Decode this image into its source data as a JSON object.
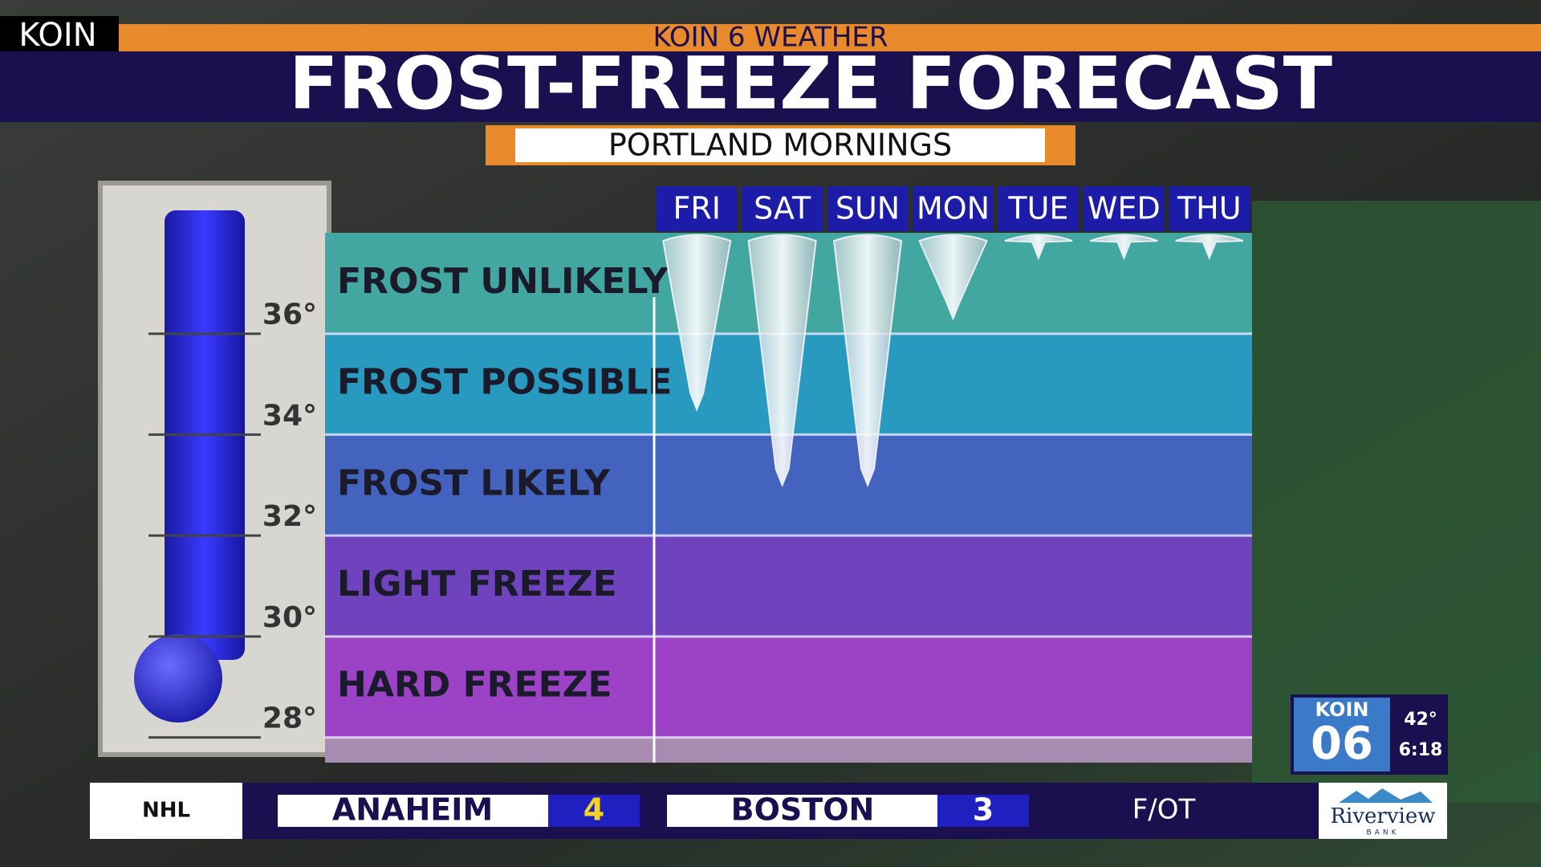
{
  "bug": "KOIN",
  "header": {
    "kicker": "KOIN 6 WEATHER",
    "title": "FROST-FREEZE FORECAST",
    "subtitle": "PORTLAND MORNINGS"
  },
  "forecast": {
    "days": [
      "FRI",
      "SAT",
      "SUN",
      "MON",
      "TUE",
      "WED",
      "THU"
    ],
    "lows": [
      34.5,
      33,
      33,
      36.3,
      37.5,
      37.5,
      37.5
    ],
    "ylim": [
      27.5,
      38
    ],
    "yticks": [
      {
        "value": 36,
        "label": "36°"
      },
      {
        "value": 34,
        "label": "34°"
      },
      {
        "value": 32,
        "label": "32°"
      },
      {
        "value": 30,
        "label": "30°"
      },
      {
        "value": 28,
        "label": "28°"
      }
    ],
    "bands": [
      "FROST UNLIKELY",
      "FROST POSSIBLE",
      "FROST LIKELY",
      "LIGHT FREEZE",
      "HARD FREEZE"
    ]
  },
  "station": {
    "logo_top": "KOIN",
    "logo_num": "06",
    "temp": "42°",
    "time": "6:18"
  },
  "score": {
    "league": "NHL",
    "teams": [
      {
        "name": "ANAHEIM",
        "score": 4
      },
      {
        "name": "BOSTON",
        "score": 3
      }
    ],
    "status": "F/OT",
    "sponsor": {
      "name": "Riverview",
      "tag": "BANK"
    }
  }
}
